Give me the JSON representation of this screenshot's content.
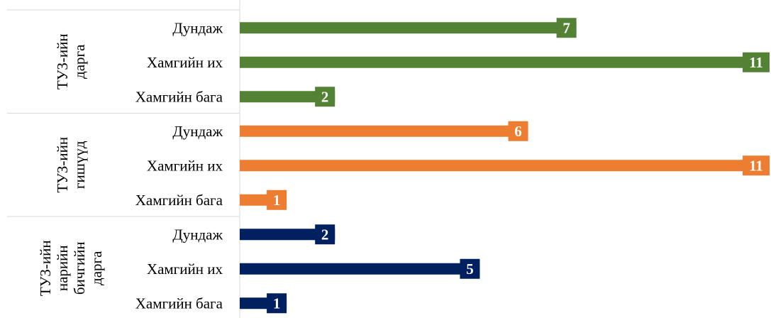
{
  "chart_data": {
    "type": "bar",
    "orientation": "horizontal",
    "xlim": [
      0,
      11
    ],
    "grid": false,
    "legend": "none",
    "groups": [
      {
        "label": [
          "ТУЗ-ийн",
          "дарга"
        ],
        "color": "#548235",
        "bars": [
          {
            "category": "Дундаж",
            "value": 7
          },
          {
            "category": "Хамгийн их",
            "value": 11
          },
          {
            "category": "Хамгийн бага",
            "value": 2
          }
        ]
      },
      {
        "label": [
          "ТУЗ-ийн",
          "гишүүд"
        ],
        "color": "#ED7D31",
        "bars": [
          {
            "category": "Дундаж",
            "value": 6
          },
          {
            "category": "Хамгийн их",
            "value": 11
          },
          {
            "category": "Хамгийн бага",
            "value": 1
          }
        ]
      },
      {
        "label": [
          "ТУЗ-ийн",
          "нарийн",
          "бичгийн",
          "дарга"
        ],
        "color": "#002060",
        "bars": [
          {
            "category": "Дундаж",
            "value": 2
          },
          {
            "category": "Хамгийн их",
            "value": 5
          },
          {
            "category": "Хамгийн бага",
            "value": 1
          }
        ]
      }
    ]
  }
}
